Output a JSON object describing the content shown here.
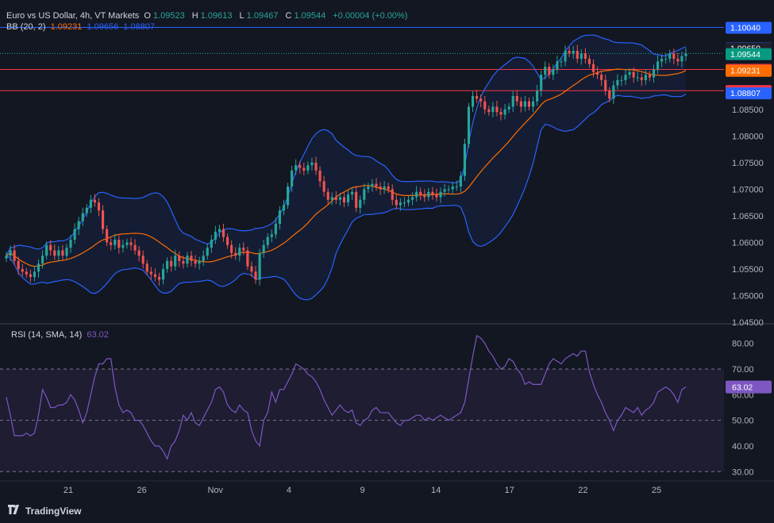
{
  "header": {
    "title": "Euro vs US Dollar, 4h, VT Markets",
    "o_label": "O",
    "o_value": "1.09523",
    "h_label": "H",
    "h_value": "1.09613",
    "l_label": "L",
    "l_value": "1.09467",
    "c_label": "C",
    "c_value": "1.09544",
    "change": "+0.00004 (+0.00%)"
  },
  "bb_legend": {
    "name": "BB (20, 2)",
    "basis": "1.09231",
    "upper": "1.09656",
    "lower": "1.08807"
  },
  "rsi_legend": {
    "name": "RSI (14, SMA, 14)",
    "value": "63.02"
  },
  "brand": "TradingView",
  "colors": {
    "background": "#131722",
    "up": "#26a69a",
    "down": "#ef5350",
    "bb_band": "#2962ff",
    "bb_basis": "#ff6d00",
    "rsi": "#7e57c2",
    "hline": "#f23645",
    "hline_blue": "#2962ff"
  },
  "chart_data": [
    {
      "type": "candlestick",
      "title": "Euro vs US Dollar, 4h, VT Markets",
      "ylim": [
        1.045,
        1.1045
      ],
      "y_ticks": [
        "1.04500",
        "1.05000",
        "1.05500",
        "1.06000",
        "1.06500",
        "1.07000",
        "1.07500",
        "1.08000",
        "1.08500"
      ],
      "x_ticks": [
        "21",
        "26",
        "Nov",
        "4",
        "9",
        "14",
        "17",
        "22",
        "25"
      ],
      "close": [
        1.0575,
        1.0585,
        1.0565,
        1.055,
        1.0545,
        1.054,
        1.0535,
        1.0545,
        1.056,
        1.0575,
        1.0595,
        1.0585,
        1.0575,
        1.0585,
        1.0575,
        1.059,
        1.0605,
        1.0625,
        1.064,
        1.0655,
        1.0665,
        1.068,
        1.0675,
        1.066,
        1.0625,
        1.06,
        1.0595,
        1.0605,
        1.059,
        1.0595,
        1.06,
        1.0595,
        1.0585,
        1.0575,
        1.056,
        1.0545,
        1.054,
        1.0535,
        1.053,
        1.055,
        1.0565,
        1.0555,
        1.0575,
        1.0565,
        1.056,
        1.0575,
        1.0565,
        1.056,
        1.0565,
        1.0575,
        1.059,
        1.0605,
        1.062,
        1.0625,
        1.061,
        1.0595,
        1.058,
        1.0575,
        1.059,
        1.0585,
        1.0555,
        1.0545,
        1.053,
        1.058,
        1.0595,
        1.061,
        1.0615,
        1.0635,
        1.066,
        1.067,
        1.0705,
        1.0735,
        1.0745,
        1.074,
        1.0735,
        1.0745,
        1.075,
        1.0735,
        1.0715,
        1.0695,
        1.068,
        1.0685,
        1.068,
        1.0685,
        1.0675,
        1.069,
        1.0695,
        1.0665,
        1.068,
        1.07,
        1.0705,
        1.071,
        1.0705,
        1.07,
        1.0705,
        1.07,
        1.068,
        1.067,
        1.0675,
        1.0675,
        1.068,
        1.0685,
        1.0695,
        1.069,
        1.0685,
        1.0695,
        1.069,
        1.0685,
        1.0695,
        1.07,
        1.07,
        1.0705,
        1.0705,
        1.0725,
        1.0785,
        1.0855,
        1.0875,
        1.087,
        1.0865,
        1.085,
        1.0845,
        1.0855,
        1.0845,
        1.084,
        1.085,
        1.0855,
        1.0875,
        1.0865,
        1.0855,
        1.0865,
        1.0855,
        1.0865,
        1.0885,
        1.0915,
        1.093,
        1.0915,
        1.0925,
        1.094,
        1.094,
        1.096,
        1.0955,
        1.096,
        1.0945,
        1.0955,
        1.0945,
        1.0935,
        1.092,
        1.0915,
        1.0905,
        1.0885,
        1.087,
        1.0895,
        1.0905,
        1.0905,
        1.0915,
        1.092,
        1.091,
        1.091,
        1.0905,
        1.0915,
        1.091,
        1.0925,
        1.094,
        1.0945,
        1.0945,
        1.0955,
        1.0945,
        1.094,
        1.095,
        1.0955
      ],
      "series": [
        {
          "name": "BB (20, 2) basis",
          "last": 1.09231
        },
        {
          "name": "BB (20, 2) upper",
          "last": 1.09656
        },
        {
          "name": "BB (20, 2) lower",
          "last": 1.08807
        }
      ],
      "horizontal_lines": [
        {
          "value": 1.1004,
          "color": "#2962ff"
        },
        {
          "value": 1.0925,
          "color": "#f23645"
        },
        {
          "value": 1.0885,
          "color": "#f23645"
        }
      ],
      "price_tags": [
        {
          "label": "1.10040",
          "value": 1.1004,
          "color": "#2962ff"
        },
        {
          "label": "1.09656",
          "value": 1.09656,
          "color": "#2962ff"
        },
        {
          "label": "1.09650",
          "value": 1.0965,
          "color": "#1e222d"
        },
        {
          "label": "1.09544",
          "value": 1.09544,
          "color": "#089981"
        },
        {
          "label": "1.09250",
          "value": 1.0925,
          "color": "#f23645"
        },
        {
          "label": "1.09231",
          "value": 1.09231,
          "color": "#ff6d00"
        },
        {
          "label": "1.08850",
          "value": 1.0885,
          "color": "#f23645"
        },
        {
          "label": "1.08807",
          "value": 1.08807,
          "color": "#2962ff"
        }
      ]
    },
    {
      "type": "line",
      "title": "RSI (14, SMA, 14)",
      "ylim": [
        27,
        87
      ],
      "y_ticks": [
        "30.00",
        "40.00",
        "50.00",
        "60.00",
        "70.00",
        "80.00"
      ],
      "levels": [
        70,
        50,
        30
      ],
      "value_label": "63.02",
      "values": [
        59,
        52,
        44,
        44,
        44,
        45,
        44,
        45,
        52,
        62,
        59,
        55,
        55,
        56,
        56,
        57,
        60,
        58,
        54,
        49,
        53,
        60,
        67,
        72,
        72,
        74,
        74,
        63,
        56,
        53,
        54,
        53,
        50,
        50,
        48,
        45,
        42,
        40,
        40,
        38,
        35,
        40,
        42,
        46,
        52,
        50,
        53,
        49,
        48,
        51,
        54,
        57,
        62,
        63,
        61,
        56,
        54,
        53,
        56,
        54,
        53,
        46,
        42,
        40,
        50,
        53,
        61,
        57,
        62,
        62,
        65,
        68,
        72,
        71,
        70,
        68,
        67,
        65,
        62,
        58,
        55,
        52,
        54,
        56,
        54,
        53,
        54,
        49,
        48,
        50,
        51,
        54,
        55,
        53,
        53,
        53,
        51,
        49,
        48,
        50,
        50,
        51,
        52,
        52,
        50,
        51,
        50,
        51,
        52,
        51,
        50,
        51,
        52,
        53,
        57,
        66,
        75,
        83,
        82,
        80,
        77,
        75,
        72,
        70,
        71,
        74,
        73,
        70,
        68,
        64,
        65,
        64,
        64,
        64,
        68,
        72,
        74,
        73,
        72,
        74,
        75,
        76,
        75,
        77,
        77,
        69,
        64,
        60,
        57,
        53,
        50,
        46,
        50,
        52,
        55,
        54,
        53,
        55,
        52,
        54,
        55,
        57,
        61,
        62,
        63,
        62,
        60,
        57,
        62,
        63
      ],
      "ylabel": ""
    }
  ]
}
